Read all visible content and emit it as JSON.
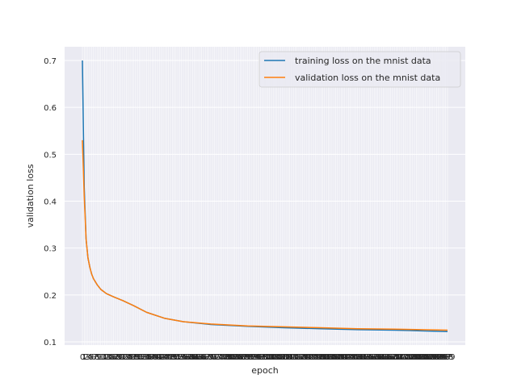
{
  "chart_data": {
    "type": "line",
    "title": "",
    "xlabel": "epoch",
    "ylabel": "validation loss",
    "xlim": [
      0,
      199
    ],
    "ylim": [
      0.1,
      0.7
    ],
    "yticks": [
      0.1,
      0.2,
      0.3,
      0.4,
      0.5,
      0.6,
      0.7
    ],
    "grid": true,
    "legend_location": "top-right",
    "x": [
      0,
      1,
      2,
      3,
      4,
      5,
      6,
      8,
      10,
      13,
      17,
      22,
      28,
      35,
      45,
      55,
      70,
      90,
      110,
      130,
      150,
      170,
      199
    ],
    "series": [
      {
        "name": "training loss on the mnist data",
        "color": "#1f77b4",
        "values": [
          0.7,
          0.43,
          0.32,
          0.28,
          0.26,
          0.245,
          0.235,
          0.222,
          0.212,
          0.203,
          0.196,
          0.188,
          0.177,
          0.163,
          0.15,
          0.143,
          0.137,
          0.133,
          0.13,
          0.128,
          0.126,
          0.125,
          0.122
        ]
      },
      {
        "name": "validation loss on the mnist data",
        "color": "#ff7f0e",
        "values": [
          0.53,
          0.41,
          0.32,
          0.28,
          0.26,
          0.245,
          0.235,
          0.222,
          0.212,
          0.203,
          0.196,
          0.188,
          0.177,
          0.163,
          0.15,
          0.143,
          0.138,
          0.134,
          0.132,
          0.13,
          0.128,
          0.127,
          0.125
        ]
      }
    ]
  }
}
